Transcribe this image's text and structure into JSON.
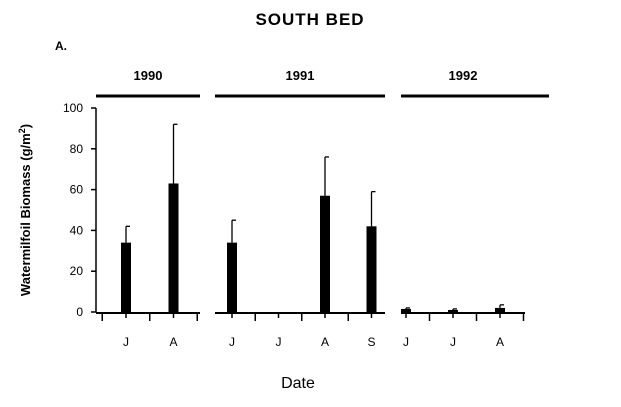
{
  "chart_data": {
    "type": "bar",
    "title": "SOUTH BED",
    "panel_label": "A.",
    "xlabel": "Date",
    "ylabel": "Watermilfoil Biomass (g/m",
    "ylabel_sup": "2",
    "ylabel_close": ")",
    "ylim": [
      0,
      100
    ],
    "yticks": [
      "0",
      "20",
      "40",
      "60",
      "80",
      "100"
    ],
    "grid": false,
    "groups": [
      {
        "year": "1990",
        "categories": [
          "J",
          "A"
        ],
        "values": [
          34,
          63
        ],
        "errors": [
          8,
          29
        ]
      },
      {
        "year": "1991",
        "categories": [
          "J",
          "J",
          "A",
          "S"
        ],
        "values": [
          34,
          null,
          57,
          42
        ],
        "errors": [
          11,
          null,
          19,
          17
        ]
      },
      {
        "year": "1992",
        "categories": [
          "J",
          "J",
          "A"
        ],
        "values": [
          1.5,
          1,
          2
        ],
        "errors": [
          0.5,
          0.5,
          1.5
        ]
      }
    ]
  }
}
